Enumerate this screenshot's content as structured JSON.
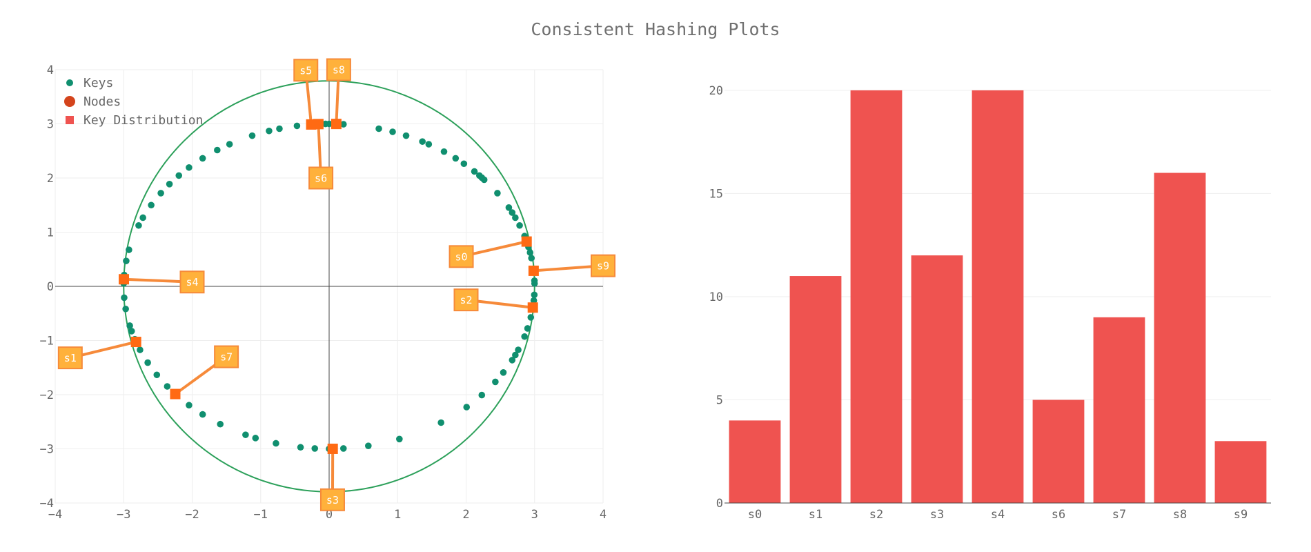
{
  "title": "Consistent Hashing Plots",
  "colors": {
    "key": "#108f6f",
    "ring": "#2ca05a",
    "node": "#ff6a13",
    "connector": "#f68a3a",
    "label_fill": "#ffb13b",
    "label_border": "#f68a3a",
    "bar": "#ef5350",
    "node_legend": "#d4441c"
  },
  "legend": [
    {
      "label": "Keys",
      "symbol": "circle-small"
    },
    {
      "label": "Nodes",
      "symbol": "circle-large"
    },
    {
      "label": "Key Distribution",
      "symbol": "square"
    }
  ],
  "chart_data": [
    {
      "type": "scatter",
      "xlim": [
        -4,
        4
      ],
      "ylim": [
        -4,
        4
      ],
      "xticks": [
        -4,
        -3,
        -2,
        -1,
        0,
        1,
        2,
        3,
        4
      ],
      "yticks": [
        -4,
        -3,
        -2,
        -1,
        0,
        1,
        2,
        3,
        4
      ],
      "grid": true,
      "legend_position": "top-left",
      "ring_radius": 3,
      "keys_angles_deg": [
        1,
        2,
        5,
        10,
        12,
        14,
        18,
        22,
        25,
        27,
        29,
        35,
        41,
        42,
        43,
        45,
        49,
        52,
        56,
        61,
        63,
        68,
        72,
        76,
        86,
        88,
        90,
        91,
        92,
        94,
        95,
        99,
        104,
        107,
        112,
        119,
        123,
        128,
        133,
        137,
        141,
        145,
        150,
        155,
        158,
        167,
        171,
        176,
        179,
        184,
        188,
        194,
        196,
        199,
        203,
        208,
        213,
        218,
        222,
        227,
        232,
        238,
        246,
        249,
        255,
        262,
        266,
        270,
        274,
        281,
        290,
        303,
        312,
        318,
        324,
        328,
        333,
        335,
        337,
        342,
        345,
        349,
        355,
        357
      ],
      "nodes": [
        {
          "name": "s0",
          "angle_deg": 16,
          "label_x": 1.93,
          "label_y": 0.55
        },
        {
          "name": "s1",
          "angle_deg": 200,
          "label_x": -3.78,
          "label_y": -1.32
        },
        {
          "name": "s2",
          "angle_deg": 352.5,
          "label_x": 2.0,
          "label_y": -0.25
        },
        {
          "name": "s3",
          "angle_deg": 271,
          "label_x": 0.05,
          "label_y": -3.94
        },
        {
          "name": "s4",
          "angle_deg": 177.5,
          "label_x": -2.0,
          "label_y": 0.08
        },
        {
          "name": "s5",
          "angle_deg": 95,
          "label_x": -0.34,
          "label_y": 3.99
        },
        {
          "name": "s6",
          "angle_deg": 93,
          "label_x": -0.12,
          "label_y": 2.0
        },
        {
          "name": "s7",
          "angle_deg": 221.5,
          "label_x": -1.5,
          "label_y": -1.3
        },
        {
          "name": "s8",
          "angle_deg": 88,
          "label_x": 0.14,
          "label_y": 4.0
        },
        {
          "name": "s9",
          "angle_deg": 5.5,
          "label_x": 4.0,
          "label_y": 0.38
        }
      ]
    },
    {
      "type": "bar",
      "series_name": "Key Distribution",
      "categories": [
        "s0",
        "s1",
        "s2",
        "s3",
        "s4",
        "s6",
        "s7",
        "s8",
        "s9"
      ],
      "values": [
        4,
        11,
        20,
        12,
        20,
        5,
        9,
        16,
        3
      ],
      "ylim": [
        0,
        21
      ],
      "yticks": [
        0,
        5,
        10,
        15,
        20
      ],
      "grid": true
    }
  ]
}
